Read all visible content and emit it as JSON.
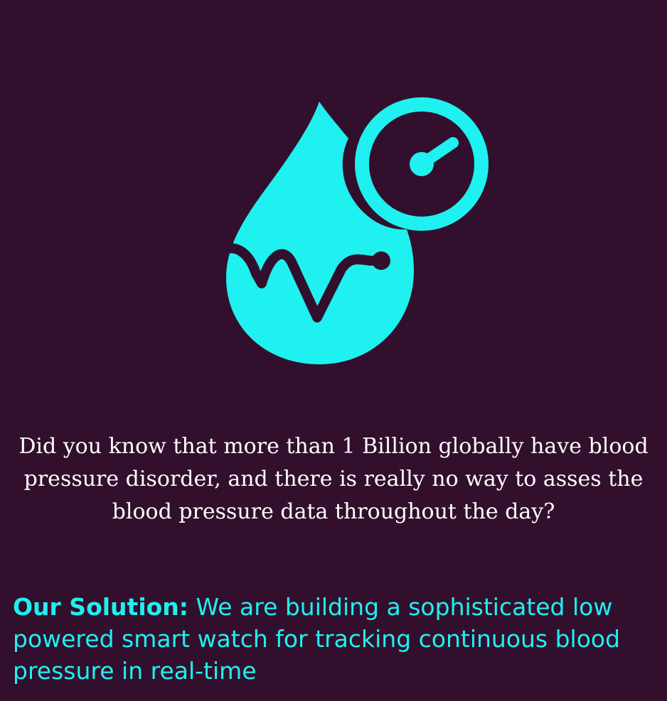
{
  "colors": {
    "background": "#32102d",
    "accent": "#1ff0f0",
    "text": "#ffffff"
  },
  "graphic": {
    "icon": "blood-drop-gauge-icon"
  },
  "fact": {
    "text": "Did you know that more than 1 Billion globally have blood pressure disorder, and there is really no way to asses the blood pressure data throughout the day?"
  },
  "solution": {
    "lead": "Our Solution:",
    "text": "We are building a sophisticated low powered smart watch for tracking continuous blood pressure in real-time"
  }
}
